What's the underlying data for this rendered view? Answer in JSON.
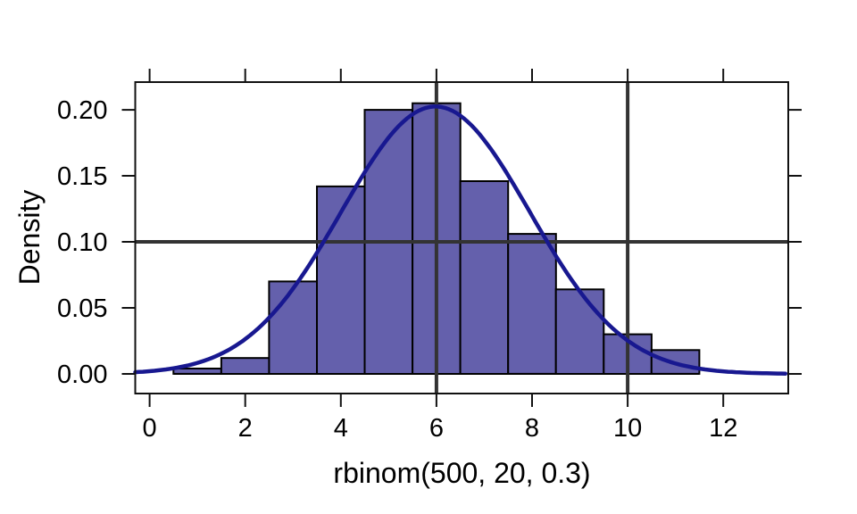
{
  "chart_data": {
    "type": "histogram",
    "title": "",
    "xlabel": "rbinom(500, 20, 0.3)",
    "ylabel": "Density",
    "x_tick_values": [
      0,
      2,
      4,
      6,
      8,
      10,
      12
    ],
    "x_tick_labels": [
      "0",
      "2",
      "4",
      "6",
      "8",
      "10",
      "12"
    ],
    "y_tick_values": [
      0,
      0.05,
      0.1,
      0.15,
      0.2
    ],
    "y_tick_labels": [
      "0.00",
      "0.05",
      "0.10",
      "0.15",
      "0.20"
    ],
    "xlim": [
      -0.3,
      13.36
    ],
    "ylim": [
      -0.0149,
      0.221
    ],
    "axes_on_all_four_sides": true,
    "grid": false,
    "bins": [
      {
        "from": 0.5,
        "to": 1.5,
        "density": 0.004
      },
      {
        "from": 1.5,
        "to": 2.5,
        "density": 0.012
      },
      {
        "from": 2.5,
        "to": 3.5,
        "density": 0.07
      },
      {
        "from": 3.5,
        "to": 4.5,
        "density": 0.142
      },
      {
        "from": 4.5,
        "to": 5.5,
        "density": 0.2
      },
      {
        "from": 5.5,
        "to": 6.5,
        "density": 0.205
      },
      {
        "from": 6.5,
        "to": 7.5,
        "density": 0.146
      },
      {
        "from": 7.5,
        "to": 8.5,
        "density": 0.106
      },
      {
        "from": 8.5,
        "to": 9.5,
        "density": 0.064
      },
      {
        "from": 9.5,
        "to": 10.5,
        "density": 0.03
      },
      {
        "from": 10.5,
        "to": 11.5,
        "density": 0.018
      }
    ],
    "normal_curve": {
      "mean": 5.98,
      "sd": 1.97
    },
    "guide_lines": {
      "vertical_x": [
        6,
        10
      ],
      "horizontal_y": [
        0.1
      ]
    },
    "colors": {
      "bar_fill": "#6460AC",
      "bar_border": "#000000",
      "curve": "#181890",
      "guide": "#333333",
      "axis": "#111111",
      "text": "#000000",
      "background": "#FFFFFF"
    }
  }
}
